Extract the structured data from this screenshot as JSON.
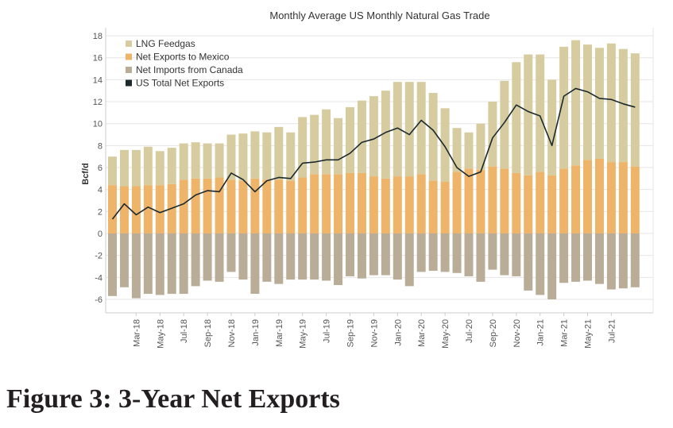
{
  "figure_caption": "Figure 3: 3-Year Net Exports",
  "colors": {
    "lng": "#d6cc9f",
    "mexico": "#eeb469",
    "canada": "#b9ad98",
    "total": "#1c2a2e",
    "grid": "#e6e6e6",
    "axis": "#cccccc",
    "text": "#555555"
  },
  "chart_data": {
    "type": "bar",
    "title": "Monthly Average US Monthly Natural Gas Trade",
    "ylabel": "Bcf/d",
    "xlabel": "",
    "ylim": [
      -7,
      18.5
    ],
    "yticks": [
      -6,
      -4,
      -2,
      0,
      2,
      4,
      6,
      8,
      10,
      12,
      14,
      16,
      18
    ],
    "grid": true,
    "legend_position": "top-left",
    "stacked": true,
    "categories": [
      "Jan-18",
      "Feb-18",
      "Mar-18",
      "Apr-18",
      "May-18",
      "Jun-18",
      "Jul-18",
      "Aug-18",
      "Sep-18",
      "Oct-18",
      "Nov-18",
      "Dec-18",
      "Jan-19",
      "Feb-19",
      "Mar-19",
      "Apr-19",
      "May-19",
      "Jun-19",
      "Jul-19",
      "Aug-19",
      "Sep-19",
      "Oct-19",
      "Nov-19",
      "Dec-19",
      "Jan-20",
      "Feb-20",
      "Mar-20",
      "Apr-20",
      "May-20",
      "Jun-20",
      "Jul-20",
      "Aug-20",
      "Sep-20",
      "Oct-20",
      "Nov-20",
      "Dec-20",
      "Jan-21",
      "Feb-21",
      "Mar-21",
      "Apr-21",
      "May-21",
      "Jun-21",
      "Jul-21",
      "Aug-21",
      "Sep-21"
    ],
    "x_tick_labels": [
      "Mar-18",
      "May-18",
      "Jul-18",
      "Sep-18",
      "Nov-18",
      "Jan-19",
      "Mar-19",
      "May-19",
      "Jul-19",
      "Sep-19",
      "Nov-19",
      "Jan-20",
      "Mar-20",
      "May-20",
      "Jul-20",
      "Sep-20",
      "Nov-20",
      "Jan-21",
      "Mar-21",
      "May-21",
      "Jul-21"
    ],
    "series": [
      {
        "name": "LNG Feedgas",
        "kind": "bar",
        "values": [
          2.6,
          3.3,
          3.3,
          3.5,
          3.1,
          3.3,
          3.3,
          3.3,
          3.2,
          3.1,
          4.1,
          4.3,
          4.3,
          4.3,
          4.8,
          4.4,
          5.5,
          5.4,
          5.9,
          5.1,
          6.0,
          6.6,
          7.3,
          8.0,
          8.6,
          8.6,
          8.4,
          8.0,
          6.7,
          4.0,
          3.3,
          4.2,
          5.9,
          8.0,
          10.1,
          11.0,
          10.7,
          8.7,
          11.1,
          11.4,
          10.5,
          10.1,
          10.8,
          10.3,
          10.3
        ]
      },
      {
        "name": "Net Exports to Mexico",
        "kind": "bar",
        "values": [
          4.4,
          4.3,
          4.3,
          4.4,
          4.4,
          4.5,
          4.9,
          5.0,
          5.0,
          5.1,
          4.9,
          4.8,
          5.0,
          4.9,
          4.9,
          4.8,
          5.1,
          5.4,
          5.4,
          5.4,
          5.5,
          5.5,
          5.2,
          5.0,
          5.2,
          5.2,
          5.4,
          4.8,
          4.7,
          5.6,
          5.9,
          5.8,
          6.1,
          5.9,
          5.5,
          5.3,
          5.6,
          5.3,
          5.9,
          6.2,
          6.7,
          6.8,
          6.5,
          6.5,
          6.1
        ]
      },
      {
        "name": "Net Imports from Canada",
        "kind": "bar",
        "values": [
          -5.7,
          -4.9,
          -5.9,
          -5.5,
          -5.6,
          -5.5,
          -5.5,
          -4.8,
          -4.3,
          -4.4,
          -3.5,
          -4.2,
          -5.5,
          -4.4,
          -4.6,
          -4.2,
          -4.2,
          -4.2,
          -4.3,
          -4.7,
          -3.9,
          -4.1,
          -3.8,
          -3.8,
          -4.2,
          -4.8,
          -3.5,
          -3.4,
          -3.5,
          -3.6,
          -3.9,
          -4.4,
          -3.3,
          -3.8,
          -3.9,
          -5.2,
          -5.6,
          -6.0,
          -4.5,
          -4.4,
          -4.3,
          -4.6,
          -5.1,
          -5.0,
          -4.9
        ]
      },
      {
        "name": "US Total Net Exports",
        "kind": "line",
        "values": [
          1.3,
          2.7,
          1.7,
          2.4,
          1.9,
          2.3,
          2.7,
          3.5,
          3.9,
          3.8,
          5.5,
          4.9,
          3.8,
          4.8,
          5.1,
          5.0,
          6.4,
          6.5,
          6.7,
          6.7,
          7.3,
          8.3,
          8.6,
          9.2,
          9.6,
          9.0,
          10.3,
          9.4,
          7.9,
          6.0,
          5.2,
          5.6,
          8.7,
          10.1,
          11.7,
          11.1,
          10.7,
          8.0,
          12.5,
          13.2,
          12.9,
          12.3,
          12.2,
          11.8,
          11.5
        ]
      }
    ]
  }
}
